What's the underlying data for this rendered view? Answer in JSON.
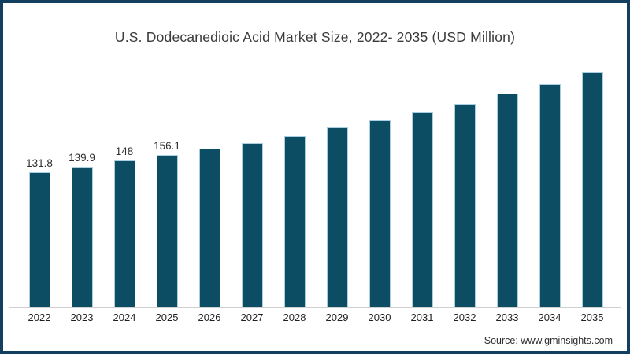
{
  "source": "Source: www.gminsights.com",
  "colors": {
    "bar": "#0d4d63",
    "bar_stroke": "#a9cfe0",
    "frame_border": "#123f60",
    "axis_line": "#d0d0d0",
    "title_text": "#3b3b3b",
    "label_text": "#2e2e2e"
  },
  "chart_data": {
    "type": "bar",
    "title": "U.S. Dodecanedioic Acid Market Size, 2022- 2035 (USD Million)",
    "xlabel": "",
    "ylabel": "",
    "categories": [
      "2022",
      "2023",
      "2024",
      "2025",
      "2026",
      "2027",
      "2028",
      "2029",
      "2030",
      "2031",
      "2032",
      "2033",
      "2034",
      "2035"
    ],
    "values": [
      131.8,
      139.9,
      148,
      156.1,
      164.7,
      172.8,
      182.6,
      194.6,
      204.8,
      215.8,
      228.1,
      242.4,
      255.7,
      272.2
    ],
    "data_labels": [
      "131.8",
      "139.9",
      "148",
      "156.1",
      "",
      "",
      "",
      "",
      "",
      "",
      "",
      "",
      "",
      ""
    ],
    "labeled_values_note": "only first four bars carry visible data labels; remaining values estimated from bar heights",
    "grid": false,
    "legend": false,
    "y_axis_visible": false,
    "baseline": "x-axis line only"
  }
}
